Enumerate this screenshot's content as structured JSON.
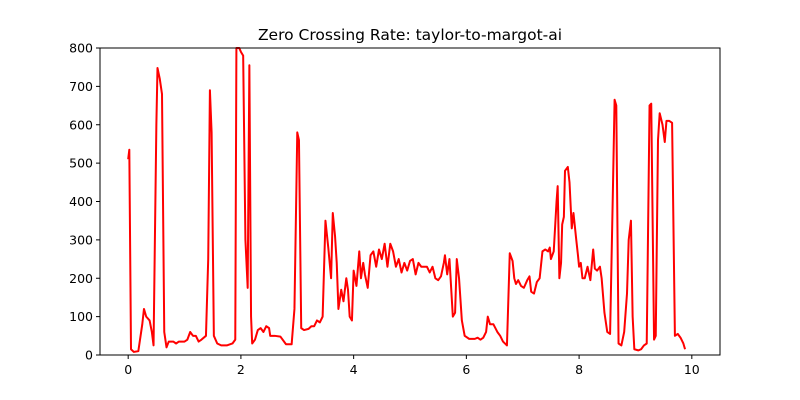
{
  "chart_data": {
    "type": "line",
    "title": "Zero Crossing Rate: taylor-to-margot-ai",
    "x": [
      0,
      0.02,
      0.05,
      0.1,
      0.18,
      0.25,
      0.28,
      0.32,
      0.38,
      0.42,
      0.45,
      0.5,
      0.52,
      0.56,
      0.6,
      0.64,
      0.68,
      0.72,
      0.8,
      0.85,
      0.9,
      1.0,
      1.05,
      1.1,
      1.15,
      1.2,
      1.25,
      1.3,
      1.38,
      1.42,
      1.45,
      1.48,
      1.52,
      1.58,
      1.65,
      1.75,
      1.85,
      1.9,
      1.92,
      1.97,
      2.0,
      2.04,
      2.08,
      2.12,
      2.15,
      2.18,
      2.2,
      2.25,
      2.3,
      2.35,
      2.4,
      2.45,
      2.5,
      2.52,
      2.6,
      2.7,
      2.8,
      2.9,
      2.95,
      3.0,
      3.03,
      3.07,
      3.12,
      3.2,
      3.25,
      3.3,
      3.35,
      3.4,
      3.45,
      3.5,
      3.55,
      3.6,
      3.63,
      3.67,
      3.7,
      3.73,
      3.78,
      3.82,
      3.87,
      3.9,
      3.93,
      3.97,
      4.0,
      4.05,
      4.1,
      4.13,
      4.17,
      4.2,
      4.25,
      4.3,
      4.35,
      4.4,
      4.45,
      4.5,
      4.55,
      4.6,
      4.65,
      4.7,
      4.75,
      4.8,
      4.85,
      4.9,
      4.95,
      5.0,
      5.05,
      5.1,
      5.15,
      5.2,
      5.3,
      5.35,
      5.4,
      5.45,
      5.5,
      5.55,
      5.6,
      5.62,
      5.66,
      5.7,
      5.73,
      5.76,
      5.8,
      5.83,
      5.87,
      5.92,
      5.97,
      6.05,
      6.15,
      6.2,
      6.25,
      6.3,
      6.35,
      6.38,
      6.42,
      6.48,
      6.55,
      6.6,
      6.65,
      6.72,
      6.77,
      6.82,
      6.85,
      6.88,
      6.92,
      6.97,
      7.02,
      7.08,
      7.12,
      7.15,
      7.2,
      7.25,
      7.3,
      7.35,
      7.4,
      7.45,
      7.48,
      7.5,
      7.55,
      7.6,
      7.62,
      7.65,
      7.68,
      7.7,
      7.73,
      7.75,
      7.8,
      7.83,
      7.87,
      7.9,
      7.95,
      7.98,
      8.0,
      8.03,
      8.06,
      8.1,
      8.15,
      8.2,
      8.25,
      8.28,
      8.32,
      8.37,
      8.4,
      8.45,
      8.5,
      8.55,
      8.6,
      8.63,
      8.66,
      8.7,
      8.75,
      8.8,
      8.85,
      8.88,
      8.92,
      8.95,
      8.98,
      9.05,
      9.1,
      9.15,
      9.2,
      9.25,
      9.28,
      9.33,
      9.36,
      9.4,
      9.43,
      9.48,
      9.52,
      9.55,
      9.6,
      9.65,
      9.7,
      9.75,
      9.8,
      9.85,
      9.88
    ],
    "series": [
      {
        "color": "#ff0000",
        "values": [
          510,
          535,
          15,
          8,
          10,
          80,
          120,
          100,
          90,
          60,
          25,
          600,
          748,
          720,
          680,
          60,
          20,
          35,
          35,
          30,
          35,
          35,
          40,
          60,
          50,
          50,
          35,
          40,
          50,
          250,
          690,
          580,
          50,
          30,
          25,
          25,
          30,
          40,
          800,
          800,
          790,
          780,
          300,
          175,
          755,
          100,
          30,
          40,
          65,
          70,
          60,
          75,
          70,
          50,
          50,
          48,
          28,
          28,
          120,
          580,
          560,
          70,
          65,
          68,
          75,
          75,
          90,
          85,
          100,
          350,
          280,
          200,
          370,
          310,
          240,
          120,
          170,
          140,
          200,
          170,
          100,
          90,
          220,
          180,
          270,
          200,
          240,
          210,
          175,
          260,
          270,
          230,
          275,
          250,
          290,
          230,
          290,
          270,
          230,
          250,
          215,
          240,
          220,
          245,
          250,
          210,
          240,
          230,
          230,
          215,
          230,
          200,
          195,
          205,
          240,
          260,
          210,
          250,
          175,
          100,
          110,
          250,
          200,
          90,
          50,
          42,
          42,
          45,
          40,
          45,
          60,
          100,
          80,
          80,
          60,
          50,
          35,
          25,
          265,
          245,
          200,
          185,
          195,
          180,
          175,
          195,
          205,
          165,
          160,
          190,
          200,
          270,
          275,
          270,
          280,
          250,
          270,
          400,
          440,
          200,
          240,
          340,
          360,
          480,
          490,
          450,
          330,
          370,
          300,
          260,
          230,
          240,
          200,
          200,
          230,
          195,
          275,
          225,
          220,
          230,
          200,
          110,
          60,
          55,
          430,
          665,
          650,
          30,
          25,
          60,
          160,
          300,
          350,
          100,
          15,
          12,
          15,
          25,
          30,
          650,
          655,
          40,
          50,
          560,
          630,
          600,
          555,
          610,
          610,
          605,
          50,
          55,
          45,
          30,
          15
        ]
      }
    ],
    "xlim": [
      -0.5,
      10.5
    ],
    "ylim": [
      0,
      800
    ],
    "xticks": [
      0,
      2,
      4,
      6,
      8,
      10
    ],
    "yticks": [
      0,
      100,
      200,
      300,
      400,
      500,
      600,
      700,
      800
    ]
  }
}
